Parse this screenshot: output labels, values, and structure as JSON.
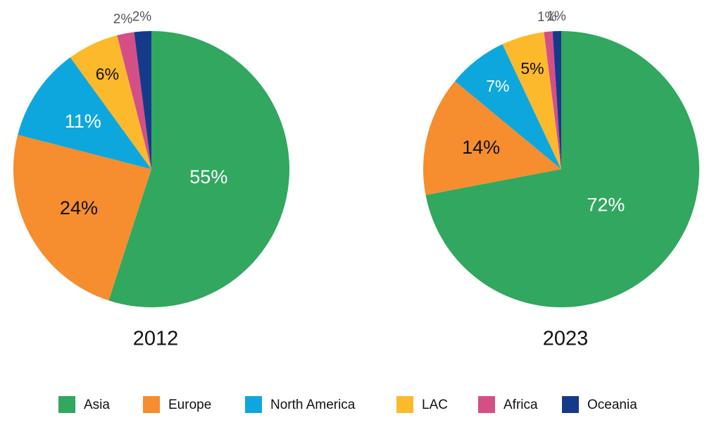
{
  "chart_data": [
    {
      "type": "pie",
      "title": "2012",
      "categories": [
        "Asia",
        "Europe",
        "North America",
        "LAC",
        "Africa",
        "Oceania"
      ],
      "values": [
        55,
        24,
        11,
        6,
        2,
        2
      ],
      "value_labels": [
        "55%",
        "24%",
        "11%",
        "6%",
        "2%",
        "2%"
      ],
      "colors": [
        "#31a75f",
        "#f68d2e",
        "#0ea7dd",
        "#fdb92c",
        "#d44f86",
        "#153a8a"
      ]
    },
    {
      "type": "pie",
      "title": "2023",
      "categories": [
        "Asia",
        "Europe",
        "North America",
        "LAC",
        "Africa",
        "Oceania"
      ],
      "values": [
        72,
        14,
        7,
        5,
        1,
        1
      ],
      "value_labels": [
        "72%",
        "14%",
        "7%",
        "5%",
        "1%",
        "1%"
      ],
      "colors": [
        "#31a75f",
        "#f68d2e",
        "#0ea7dd",
        "#fdb92c",
        "#d44f86",
        "#153a8a"
      ]
    }
  ]
}
